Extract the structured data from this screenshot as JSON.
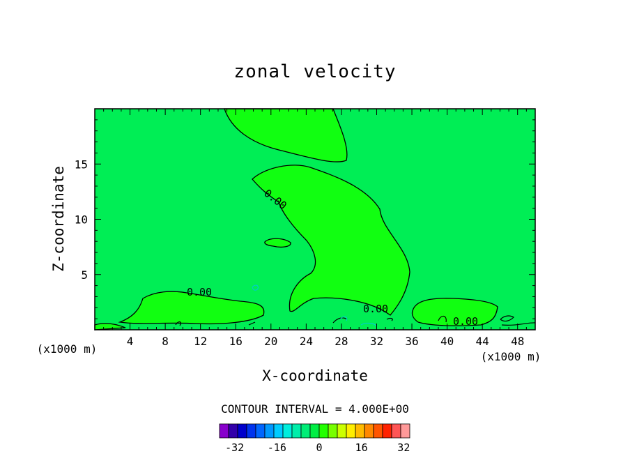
{
  "chart_data": {
    "type": "contour",
    "title": "zonal velocity",
    "xlabel": "X-coordinate",
    "ylabel": "Z-coordinate",
    "x_unit": "(x1000 m)",
    "x_unit_right": "(x1000 m)",
    "xlim": [
      0,
      50
    ],
    "ylim": [
      0,
      20
    ],
    "x_ticks": [
      "4",
      "8",
      "12",
      "16",
      "20",
      "24",
      "28",
      "32",
      "36",
      "40",
      "44",
      "48"
    ],
    "y_ticks": [
      "5",
      "10",
      "15"
    ],
    "contour_interval_label": "CONTOUR INTERVAL = 4.000E+00",
    "contour_labels": [
      "0.00",
      "0.00",
      "0.00",
      "0.00"
    ],
    "field_background": "#00ee55",
    "positive_region_color": "#11ff11",
    "colorbar": {
      "min": -36,
      "max": 36,
      "step": 4,
      "tick_labels": [
        "-32",
        "-16",
        "0",
        "16",
        "32"
      ],
      "colors": [
        "#8800cc",
        "#3300aa",
        "#0000cc",
        "#0033ee",
        "#0066ff",
        "#0099ff",
        "#00ccff",
        "#00eedd",
        "#00eeaa",
        "#00ee77",
        "#00ee44",
        "#22ff00",
        "#77ff00",
        "#ccff00",
        "#ffee00",
        "#ffbb00",
        "#ff8800",
        "#ff5500",
        "#ff2200",
        "#ff5555",
        "#ff9999"
      ]
    }
  }
}
